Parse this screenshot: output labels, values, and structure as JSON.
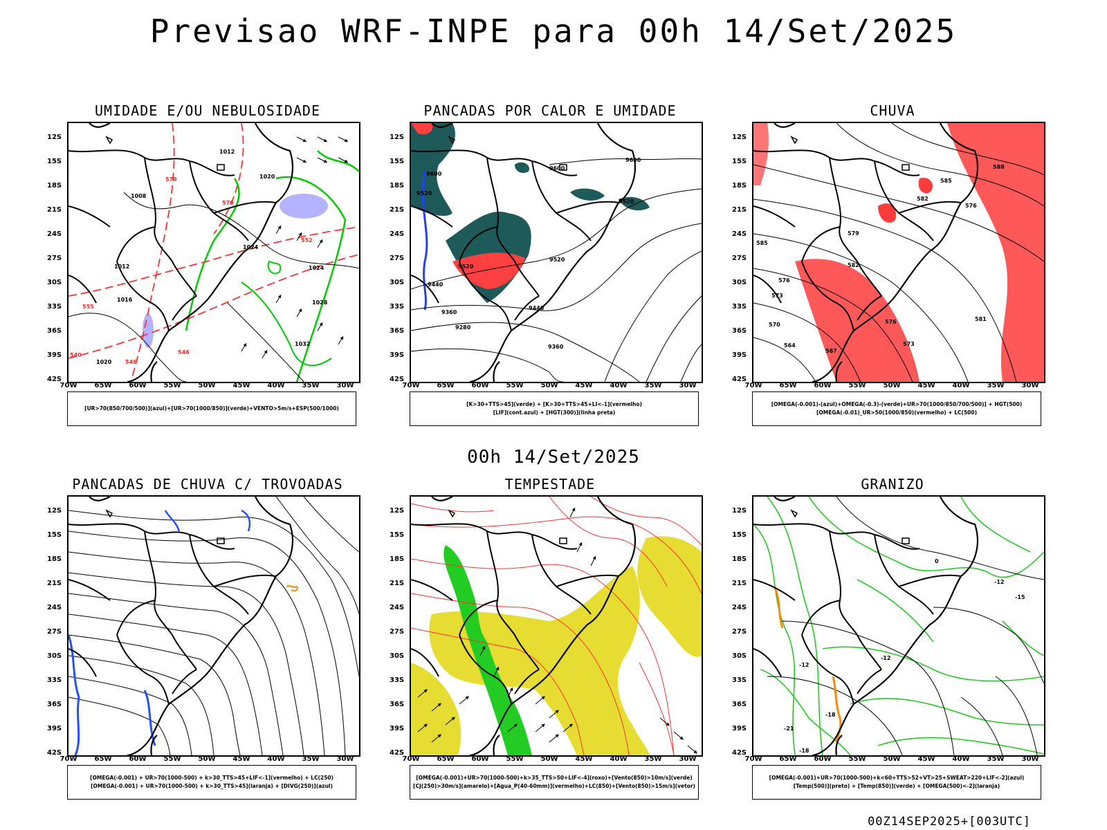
{
  "title": "Previsao WRF-INPE  para 00h 14/Set/2025",
  "mid_title": "00h 14/Set/2025",
  "footer": "00Z14SEP2025+[003UTC]",
  "lat_labels": [
    "12S",
    "15S",
    "18S",
    "21S",
    "24S",
    "27S",
    "30S",
    "33S",
    "36S",
    "39S",
    "42S"
  ],
  "lon_labels": [
    "70W",
    "65W",
    "60W",
    "55W",
    "50W",
    "45W",
    "40W",
    "35W",
    "30W"
  ],
  "panels": [
    {
      "title": "UMIDADE E/OU NEBULOSIDADE",
      "legend": [
        "[UR>70(850/700/500)](azul)+[UR>70(1000/850)](verde)+VENTO>5m/s+ESP(500/1000)"
      ],
      "labels": [
        "1012",
        "1020",
        "1008",
        "1012",
        "1016",
        "1024",
        "1024",
        "1028",
        "1032",
        "1020",
        "570",
        "579",
        "555",
        "552",
        "546",
        "540",
        "546"
      ],
      "colors": {
        "contour": "#000000",
        "dashed": "#ff3030",
        "fill_green": "#00cc00",
        "fill_blue": "#a0a0ff"
      }
    },
    {
      "title": "PANCADAS POR CALOR E UMIDADE",
      "legend": [
        "[K>30+TTS>45](verde) + [K>30+TTS>45+LI<-1](vermelho)",
        "[LIF](cont.azul) + [HGT(300)](linha preta)"
      ],
      "labels": [
        "9600",
        "9600",
        "9600",
        "9520",
        "9520",
        "9520",
        "9440",
        "9440",
        "9360",
        "9280",
        "9360",
        "9520"
      ],
      "colors": {
        "fill_dark": "#1f5a5a",
        "fill_red": "#ff4040",
        "contour_blue": "#2040ff"
      }
    },
    {
      "title": "CHUVA",
      "legend": [
        "[OMEGA(-0.001)-(azul)+OMEGA(-0.3)-(verde)+UR>70(1000/850/700/500)] + HGT(500)",
        "[OMEGA(-0.01)_UR>50(1000/850)(vermelho) + LC(500)"
      ],
      "labels": [
        "585",
        "576",
        "573",
        "570",
        "564",
        "567",
        "582",
        "579",
        "576",
        "573",
        "576",
        "581",
        "582",
        "585",
        "588"
      ],
      "colors": {
        "fill_red": "#ff3b3b"
      }
    },
    {
      "title": "PANCADAS DE CHUVA C/ TROVOADAS",
      "legend": [
        "[OMEGA(-0.001) + UR>70(1000-500) + k>30_TTS>45+LIF<-1](vermelho) + LC(250)",
        "[OMEGA(-0.001) + UR>70(1000-500) + k>30_TTS>45](laranja) + [DIVG(250)](azul)"
      ],
      "labels": [],
      "colors": {
        "contour_blue": "#2050ff",
        "orange": "#ff8800"
      }
    },
    {
      "title": "TEMPESTADE",
      "legend": [
        "[OMEGA(-0.001)+UR>70(1000-500)+k>35_TTS>50+LIF<-4](roxo)+[Vento(850)>10m/s](verde)",
        "[CJ(250)>30m/s](amarelo)+[Agua_P(40-60mm)](vermelho)+LC(850)+[Vento(850)>15m/s](vetor)"
      ],
      "labels": [],
      "colors": {
        "fill_yellow": "#e6dc32",
        "fill_green": "#22cc22",
        "stream_red": "#ff3030"
      }
    },
    {
      "title": "GRANIZO",
      "legend": [
        "[OMEGA(-0.001)+UR>70(1000-500)+k<60+TTS>52+VT>25+SWEAT>220+LIF<-2](azul)",
        "[Temp(500)](preto) + [Temp(850)](verde) + [OMEGA(500)<-2](laranja)"
      ],
      "labels": [
        "-12",
        "-15",
        "-12",
        "-12",
        "-18",
        "-18",
        "-21",
        "0"
      ],
      "colors": {
        "contour_green": "#22cc22",
        "orange": "#ff8800"
      }
    }
  ]
}
